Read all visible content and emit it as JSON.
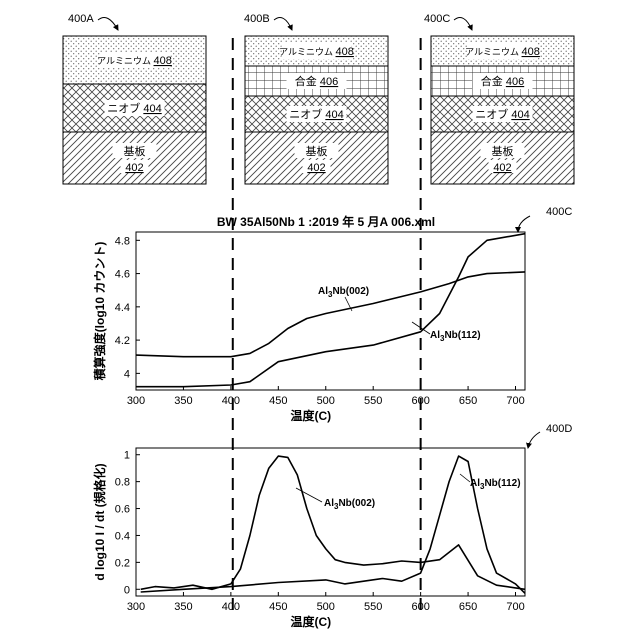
{
  "stacks": [
    {
      "id": "400A",
      "layers": [
        {
          "name": "アルミニウム",
          "ref": "408",
          "pattern": "dots"
        },
        {
          "name": "ニオブ",
          "ref": "404",
          "pattern": "cross"
        },
        {
          "name": "基板",
          "ref": "402",
          "pattern": "diag"
        }
      ]
    },
    {
      "id": "400B",
      "layers": [
        {
          "name": "アルミニウム",
          "ref": "408",
          "pattern": "dots"
        },
        {
          "name": "合金",
          "ref": "406",
          "pattern": "grid"
        },
        {
          "name": "ニオブ",
          "ref": "404",
          "pattern": "cross"
        },
        {
          "name": "基板",
          "ref": "402",
          "pattern": "diag"
        }
      ]
    },
    {
      "id": "400C",
      "layers": [
        {
          "name": "アルミニウム",
          "ref": "408",
          "pattern": "dots"
        },
        {
          "name": "合金",
          "ref": "406",
          "pattern": "grid"
        },
        {
          "name": "ニオブ",
          "ref": "404",
          "pattern": "cross"
        },
        {
          "name": "基板",
          "ref": "402",
          "pattern": "diag"
        }
      ]
    }
  ],
  "chart_data": [
    {
      "type": "line",
      "ref_label": "400C",
      "title": "BW 35Al50Nb 1 :2019 年 5 月A 006.xml",
      "xlabel": "温度(C)",
      "ylabel": "積算強度(log10 カウント)",
      "xlim": [
        300,
        710
      ],
      "ylim": [
        3.9,
        4.85
      ],
      "xticks": [
        300,
        350,
        400,
        450,
        500,
        550,
        600,
        650,
        700
      ],
      "yticks": [
        4,
        4.2,
        4.4,
        4.6,
        4.8
      ],
      "series": [
        {
          "name": "Al3Nb(002)",
          "x": [
            300,
            350,
            400,
            420,
            440,
            460,
            480,
            500,
            550,
            600,
            630,
            650,
            670,
            710
          ],
          "y": [
            4.11,
            4.1,
            4.1,
            4.12,
            4.18,
            4.27,
            4.33,
            4.36,
            4.42,
            4.49,
            4.54,
            4.58,
            4.6,
            4.61
          ]
        },
        {
          "name": "Al3Nb(112)",
          "x": [
            300,
            350,
            400,
            420,
            450,
            500,
            550,
            600,
            620,
            640,
            650,
            670,
            710
          ],
          "y": [
            3.92,
            3.92,
            3.93,
            3.95,
            4.07,
            4.13,
            4.17,
            4.25,
            4.36,
            4.58,
            4.7,
            4.8,
            4.84
          ]
        }
      ],
      "annotations": [
        "Al",
        "3",
        "Nb(002)",
        "Al",
        "3",
        "Nb(112)"
      ]
    },
    {
      "type": "line",
      "ref_label": "400D",
      "xlabel": "温度(C)",
      "ylabel": "d log10 I / dt (規格化)",
      "xlim": [
        300,
        710
      ],
      "ylim": [
        -0.05,
        1.05
      ],
      "xticks": [
        300,
        350,
        400,
        450,
        500,
        550,
        600,
        650,
        700
      ],
      "yticks": [
        0,
        0.2,
        0.4,
        0.6,
        0.8,
        1
      ],
      "series": [
        {
          "name": "Al3Nb(002)",
          "x": [
            305,
            320,
            340,
            360,
            380,
            400,
            410,
            420,
            430,
            440,
            450,
            460,
            470,
            480,
            490,
            500,
            510,
            520,
            540,
            560,
            580,
            600,
            620,
            640,
            660,
            680,
            700,
            710
          ],
          "y": [
            0.0,
            0.02,
            0.01,
            0.03,
            0.0,
            0.04,
            0.15,
            0.4,
            0.7,
            0.9,
            0.99,
            0.98,
            0.85,
            0.6,
            0.4,
            0.3,
            0.22,
            0.2,
            0.18,
            0.19,
            0.21,
            0.2,
            0.22,
            0.33,
            0.1,
            0.03,
            0.01,
            0.0
          ]
        },
        {
          "name": "Al3Nb(112)",
          "x": [
            305,
            350,
            400,
            450,
            500,
            520,
            540,
            560,
            580,
            600,
            610,
            620,
            630,
            640,
            650,
            660,
            670,
            680,
            700,
            710
          ],
          "y": [
            -0.02,
            0.0,
            0.02,
            0.05,
            0.07,
            0.04,
            0.06,
            0.08,
            0.06,
            0.12,
            0.3,
            0.55,
            0.8,
            0.99,
            0.95,
            0.6,
            0.3,
            0.12,
            0.04,
            -0.03
          ]
        }
      ],
      "annotations": [
        "Al",
        "3",
        "Nb(002)",
        "Al",
        "3",
        "Nb(112)"
      ]
    }
  ],
  "dashed_lines_x": [
    402,
    600
  ]
}
